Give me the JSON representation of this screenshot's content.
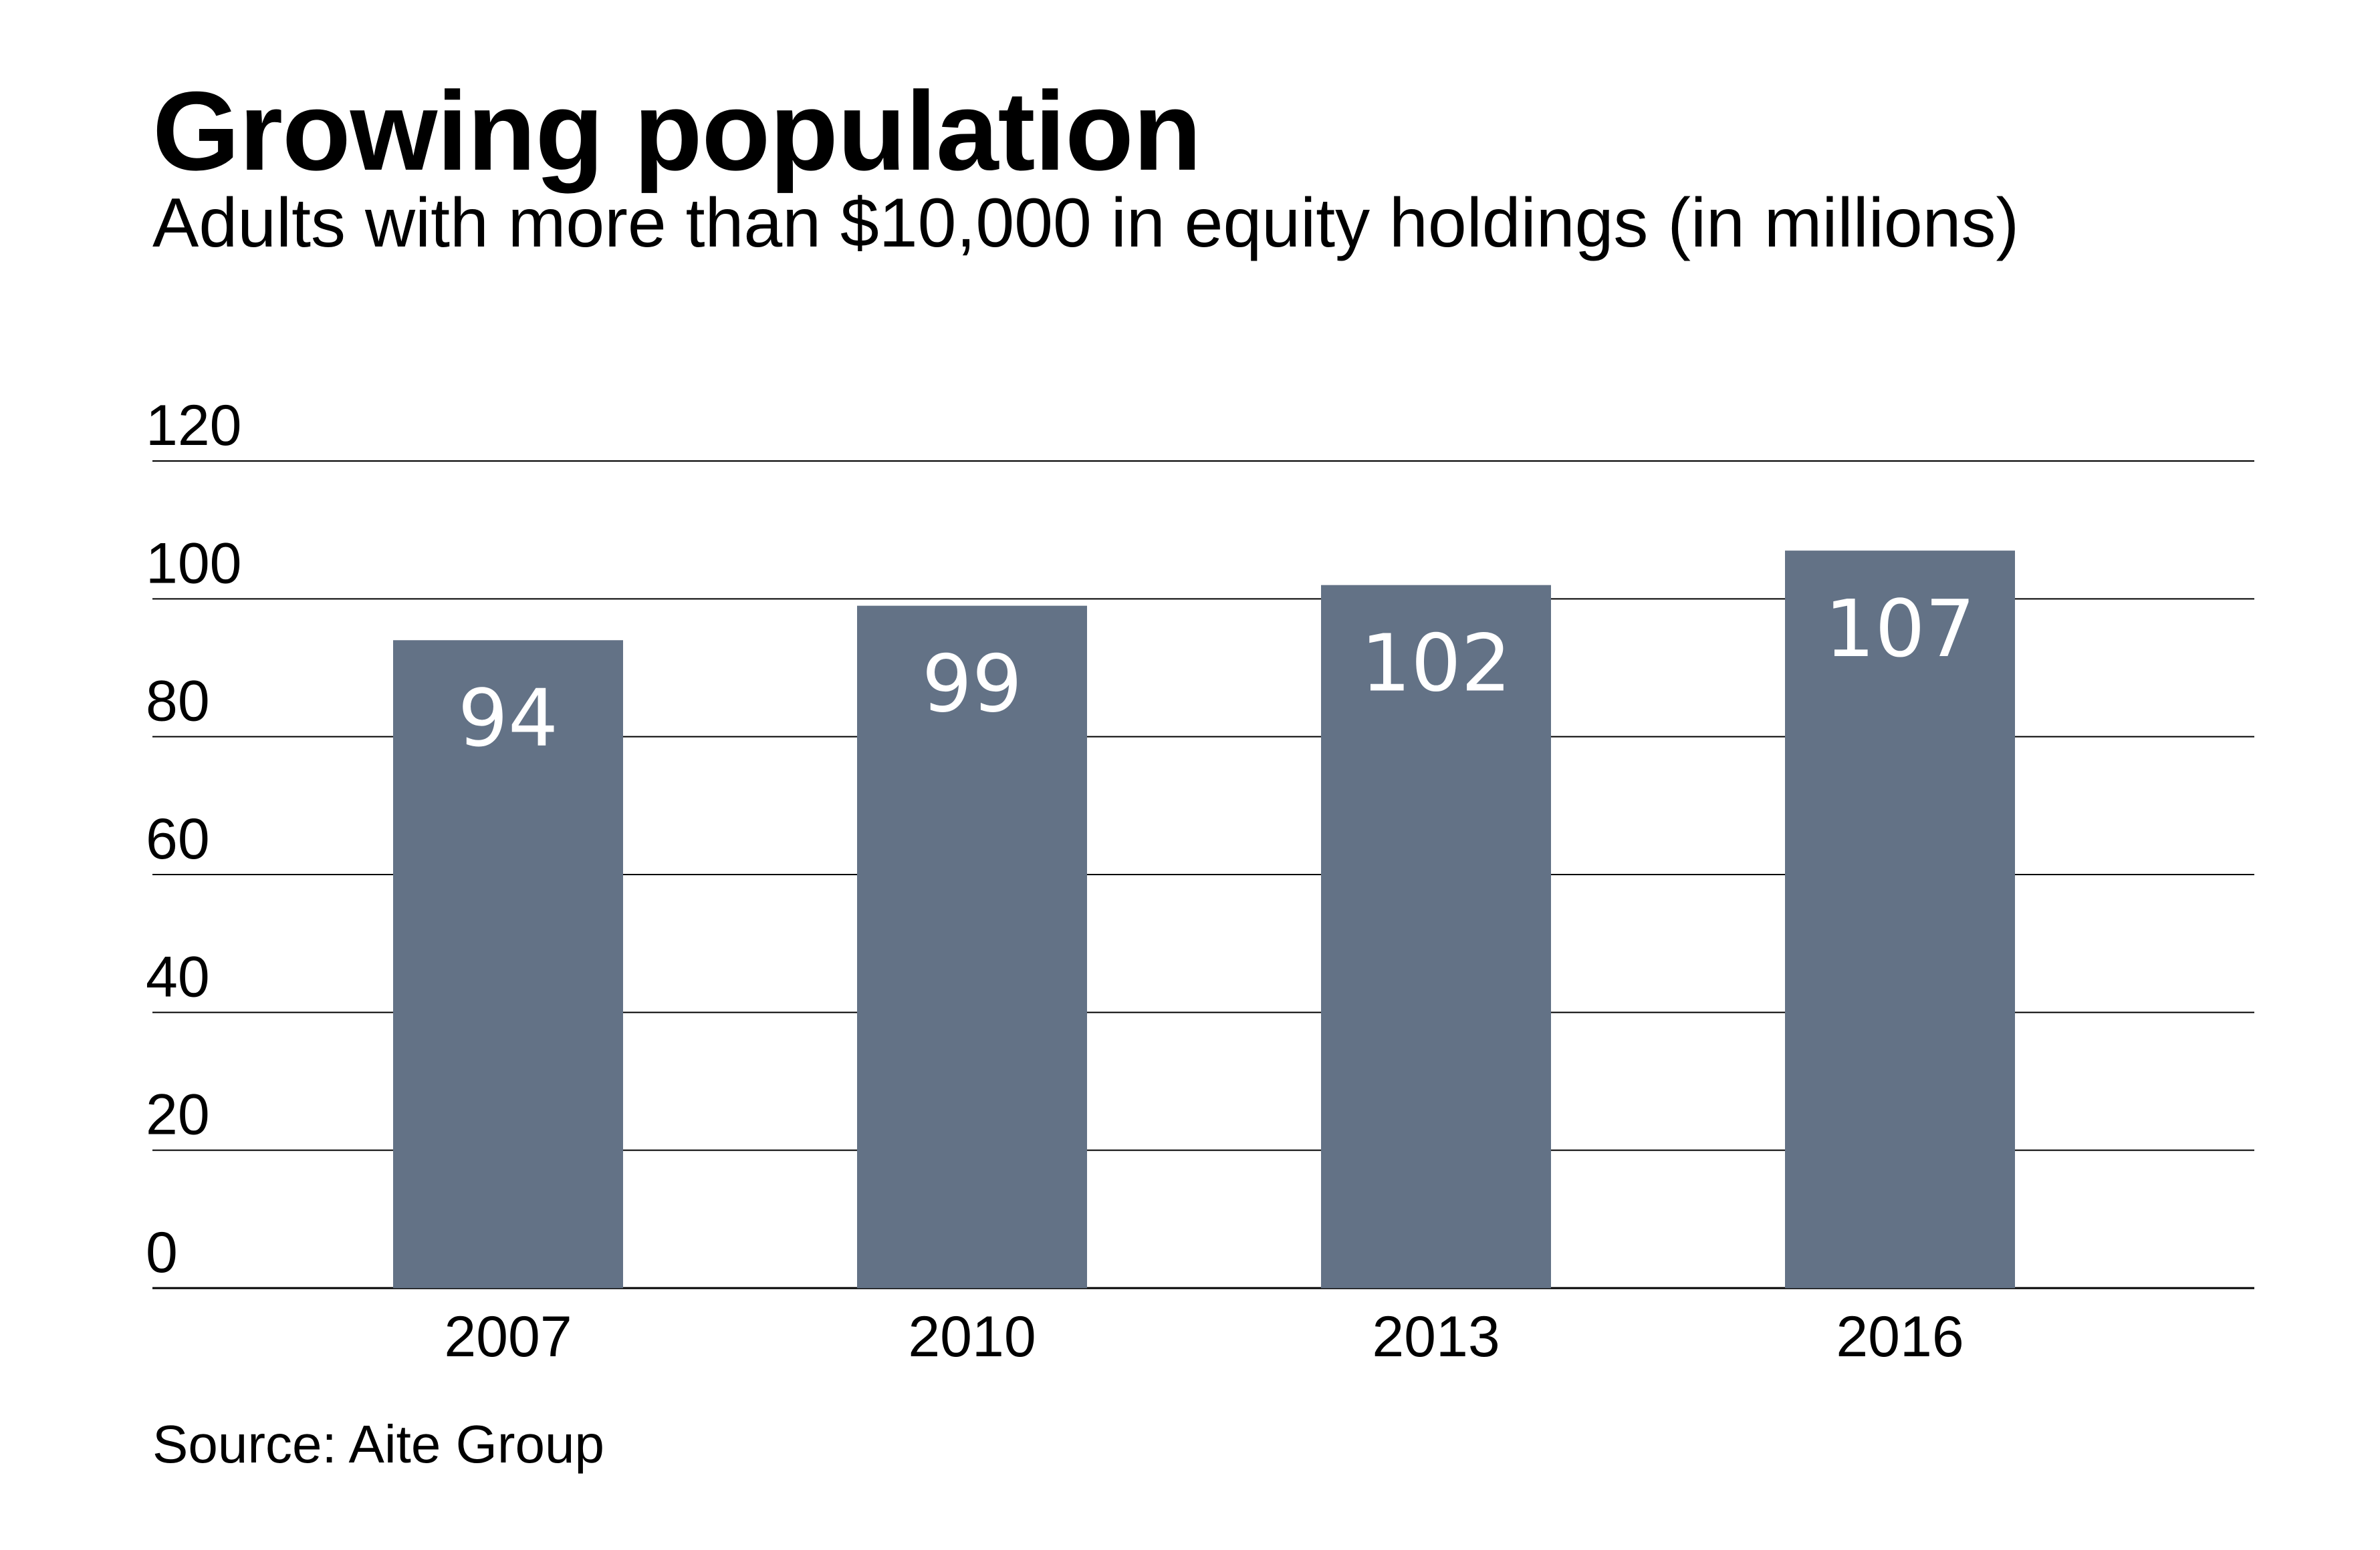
{
  "chart_data": {
    "type": "bar",
    "title": "Growing population",
    "subtitle": "Adults with more than $10,000 in equity holdings (in millions)",
    "source": "Source: Aite Group",
    "categories": [
      "2007",
      "2010",
      "2013",
      "2016"
    ],
    "values": [
      94,
      99,
      102,
      107
    ],
    "data_labels": [
      "94",
      "99",
      "102",
      "107"
    ],
    "yticks": [
      "0",
      "20",
      "40",
      "60",
      "80",
      "100",
      "120"
    ],
    "ylim": [
      0,
      120
    ],
    "grid": true,
    "legend": "none",
    "bar_color": "#637286",
    "label_color": "#ffffff"
  }
}
